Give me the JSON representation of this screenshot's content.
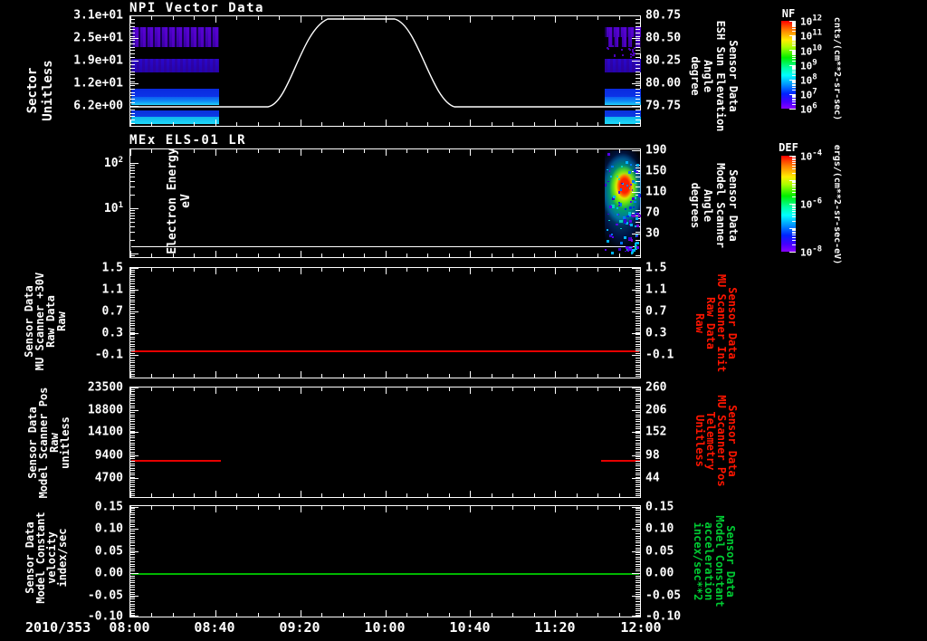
{
  "axis": {
    "date": "2010/353",
    "time_ticks": [
      "08:00",
      "08:40",
      "09:20",
      "10:00",
      "10:40",
      "11:20",
      "12:00"
    ]
  },
  "panels": {
    "p1": {
      "title": "NPI Vector Data",
      "left_label": "Sector\nUnitless",
      "left_ticks": [
        "3.1e+01",
        "2.5e+01",
        "1.9e+01",
        "1.2e+01",
        "6.2e+00"
      ],
      "right_ticks": [
        "80.75",
        "80.50",
        "80.25",
        "80.00",
        "79.75"
      ],
      "right_label": "Sensor Data\nESH Sun Elevation\nAngle\ndegree"
    },
    "p2": {
      "title": "MEx ELS-01 LR",
      "left_label": "Electron Energy\neV",
      "left_ticks": [
        {
          "base": "10",
          "exp": "2"
        },
        {
          "base": "10",
          "exp": "1"
        }
      ],
      "right_ticks": [
        "190",
        "150",
        "110",
        "70",
        "30"
      ],
      "right_label": "Sensor Data\nModel Scanner\nAngle\ndegrees"
    },
    "p3": {
      "left_label": "Sensor Data\nMU Scanner +30V\nRaw Data\nRaw",
      "left_ticks": [
        "1.5",
        "1.1",
        "0.7",
        "0.3",
        "-0.1"
      ],
      "right_ticks": [
        "1.5",
        "1.1",
        "0.7",
        "0.3",
        "-0.1"
      ],
      "right_label": "Sensor Data\nMU Scanner Init\nRaw Data\nRaw"
    },
    "p4": {
      "left_label": "Sensor Data\nModel Scanner Pos\nRaw\nunitless",
      "left_ticks": [
        "23500",
        "18800",
        "14100",
        "9400",
        "4700"
      ],
      "right_ticks": [
        "260",
        "206",
        "152",
        "98",
        "44"
      ],
      "right_label": "Sensor Data\nMU Scanner Pos\nTelemetry\nUnitless"
    },
    "p5": {
      "left_label": "Sensor Data\nModel Constant\nvelocity\nindex/sec",
      "left_ticks": [
        "0.15",
        "0.10",
        "0.05",
        "0.00",
        "-0.05",
        "-0.10"
      ],
      "right_ticks": [
        "0.15",
        "0.10",
        "0.05",
        "0.00",
        "-0.05",
        "-0.10"
      ],
      "right_label": "Sensor Data\nModel Constant\nacceleration\nincex/sec**2"
    }
  },
  "colorbars": {
    "nf": {
      "title": "NF",
      "unit": "cnts/(cm**2-sr-sec)",
      "ticks": [
        {
          "base": "10",
          "exp": "12"
        },
        {
          "base": "10",
          "exp": "11"
        },
        {
          "base": "10",
          "exp": "10"
        },
        {
          "base": "10",
          "exp": "9"
        },
        {
          "base": "10",
          "exp": "8"
        },
        {
          "base": "10",
          "exp": "7"
        },
        {
          "base": "10",
          "exp": "6"
        }
      ]
    },
    "def": {
      "title": "DEF",
      "unit": "ergs/(cm**2-sr-sec-eV)",
      "ticks": [
        {
          "base": "10",
          "exp": "-4"
        },
        {
          "base": "10",
          "exp": "-6"
        },
        {
          "base": "10",
          "exp": "-8"
        }
      ]
    }
  },
  "colors": {
    "background": "#000000",
    "axis_white": "#ffffff",
    "red_accent": "#ff1500",
    "green_accent": "#00cc33"
  },
  "chart_data": [
    {
      "type": "heatmap",
      "panel": 1,
      "title": "NPI Vector Data",
      "x_axis": {
        "date": "2010/353",
        "range": [
          "08:00",
          "12:00"
        ],
        "tick_labels": [
          "08:00",
          "08:40",
          "09:20",
          "10:00",
          "10:40",
          "11:20",
          "12:00"
        ],
        "minor_tick_min": 10
      },
      "y_axis": {
        "label": "Sector Unitless",
        "ticks": [
          6.2,
          12.4,
          18.6,
          24.8,
          31.0
        ]
      },
      "y2_axis": {
        "label": "Sensor Data ESH Sun Elevation Angle degree",
        "ticks": [
          79.75,
          80.0,
          80.25,
          80.5,
          80.75
        ]
      },
      "colorbar": {
        "name": "NF",
        "unit": "cnts/(cm**2-sr-sec)",
        "scale": "log",
        "range": [
          1000000.0,
          1000000000000.0
        ]
      },
      "data_intervals": [
        {
          "time": [
            "08:00",
            "08:42"
          ],
          "bands": [
            {
              "sector": [
                22,
                28
              ],
              "level": "violet ~1e6, noisy"
            },
            {
              "sector": [
                17,
                20
              ],
              "level": "blue-violet ~1e7"
            },
            {
              "sector": [
                10,
                13
              ],
              "level": "blue ~3e7"
            },
            {
              "sector": [
                7,
                10
              ],
              "level": "bright blue to cyan ~1e8"
            },
            {
              "sector": [
                4,
                6
              ],
              "level": "blue ~3e7"
            },
            {
              "sector": [
                2,
                4
              ],
              "level": "cyan ~1e8"
            }
          ]
        },
        {
          "time": [
            "11:43",
            "12:00"
          ],
          "bands": "same banded pattern as morning interval, violet band broken by black gaps"
        }
      ],
      "overlay_line": {
        "series": "ESH Sun Elevation Angle",
        "axis": "y2",
        "points": [
          [
            "08:00",
            79.75
          ],
          [
            "09:05",
            79.75
          ],
          [
            "09:15",
            80.05
          ],
          [
            "09:25",
            80.55
          ],
          [
            "09:34",
            80.77
          ],
          [
            "10:05",
            80.77
          ],
          [
            "10:14",
            80.45
          ],
          [
            "10:24",
            79.95
          ],
          [
            "10:33",
            79.75
          ],
          [
            "12:00",
            79.75
          ]
        ]
      }
    },
    {
      "type": "heatmap",
      "panel": 2,
      "title": "MEx ELS-01 LR",
      "y_axis": {
        "label": "Electron Energy eV",
        "scale": "log",
        "ticks": [
          10,
          100
        ],
        "range": [
          0.8,
          200
        ]
      },
      "y2_axis": {
        "label": "Sensor Data Model Scanner Angle degrees",
        "ticks": [
          30,
          70,
          110,
          150,
          190
        ]
      },
      "colorbar": {
        "name": "DEF",
        "unit": "ergs/(cm**2-sr-sec-eV)",
        "scale": "log",
        "range": [
          1e-08,
          0.0001
        ]
      },
      "data_intervals": [
        {
          "time": [
            "11:43",
            "12:00"
          ],
          "description": "electron burst: red core ~1e-4 at ~20-60 eV, yellow-green halo ~10-150 eV, cyan fringe, scattered blue/violet speckles ~1e-7 below 10 eV"
        }
      ],
      "overlay_line": {
        "series": "constant level line",
        "value_eV": 2,
        "time": [
          "08:00",
          "12:00"
        ],
        "color": "#ffffff"
      }
    },
    {
      "type": "line",
      "panel": 3,
      "y_axis": {
        "label": "Sensor Data MU Scanner +30V Raw Data Raw",
        "ticks": [
          -0.1,
          0.3,
          0.7,
          1.1,
          1.5
        ]
      },
      "y2_axis": {
        "label": "Sensor Data MU Scanner Init Raw Data Raw",
        "ticks": [
          -0.1,
          0.3,
          0.7,
          1.1,
          1.5
        ]
      },
      "series": [
        {
          "name": "MU Scanner +30V Raw",
          "color": "#ff0000",
          "points": [
            [
              "08:00",
              0.0
            ],
            [
              "12:00",
              0.0
            ]
          ]
        }
      ]
    },
    {
      "type": "line",
      "panel": 4,
      "y_axis": {
        "label": "Sensor Data Model Scanner Pos Raw unitless",
        "ticks": [
          4700,
          9400,
          14100,
          18800,
          23500
        ]
      },
      "y2_axis": {
        "label": "Sensor Data MU Scanner Pos Telemetry Unitless",
        "ticks": [
          44,
          98,
          152,
          206,
          260
        ]
      },
      "series": [
        {
          "name": "Model Scanner Pos Raw",
          "color": "#ff0000",
          "segments": [
            [
              [
                "08:00",
                8400
              ],
              [
                "08:42",
                8400
              ]
            ],
            [
              [
                "11:43",
                8400
              ],
              [
                "12:00",
                8400
              ]
            ]
          ]
        }
      ]
    },
    {
      "type": "line",
      "panel": 5,
      "y_axis": {
        "label": "Sensor Data Model Constant velocity index/sec",
        "ticks": [
          -0.1,
          -0.05,
          0.0,
          0.05,
          0.1,
          0.15
        ]
      },
      "y2_axis": {
        "label": "Sensor Data Model Constant acceleration incex/sec**2",
        "ticks": [
          -0.1,
          -0.05,
          0.0,
          0.05,
          0.1,
          0.15
        ]
      },
      "series": [
        {
          "name": "Model Constant velocity",
          "color": "#00cc00",
          "points": [
            [
              "08:00",
              0.0
            ],
            [
              "12:00",
              0.0
            ]
          ]
        }
      ]
    }
  ]
}
